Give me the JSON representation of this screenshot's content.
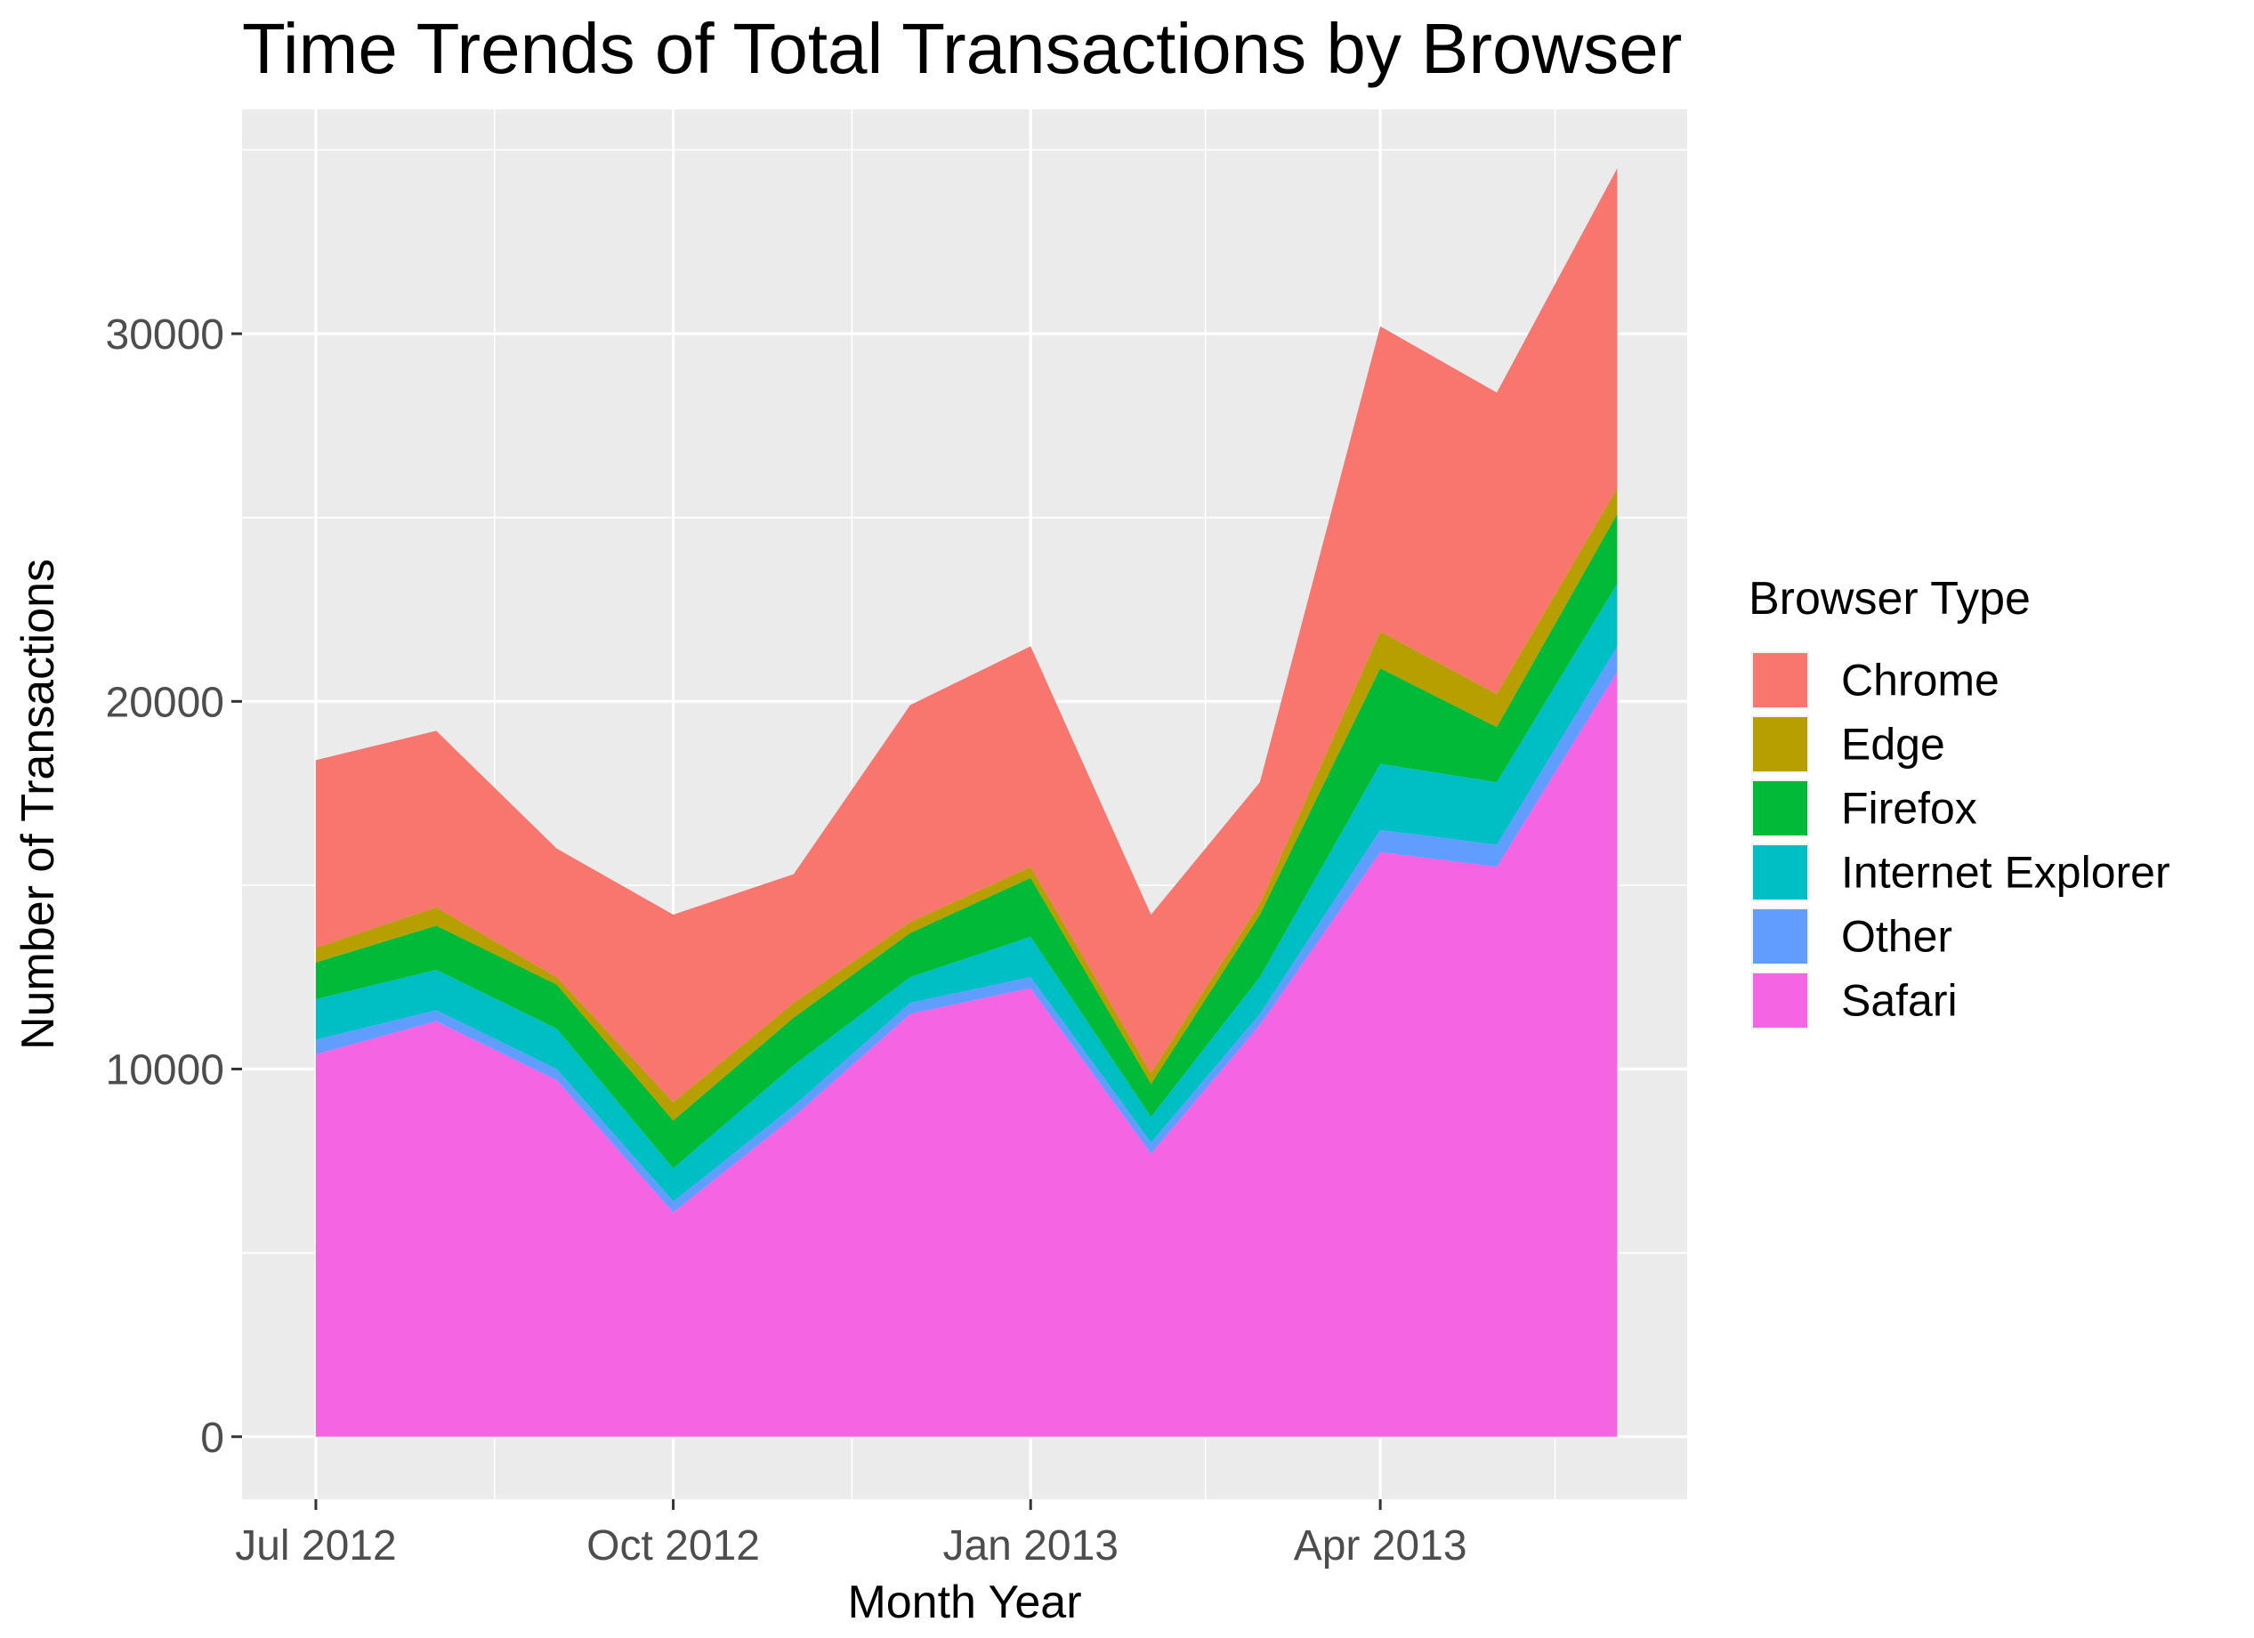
{
  "chart_data": {
    "type": "area",
    "stacked": true,
    "title": "Time Trends of Total Transactions by Browser",
    "xlabel": "Month Year",
    "ylabel": "Number of Transactions",
    "x": [
      "2012-07",
      "2012-08",
      "2012-09",
      "2012-10",
      "2012-11",
      "2012-12",
      "2013-01",
      "2013-02",
      "2013-03",
      "2013-04",
      "2013-05",
      "2013-06"
    ],
    "x_ticks": [
      {
        "x": "2012-07",
        "label": "Jul 2012"
      },
      {
        "x": "2012-10",
        "label": "Oct 2012"
      },
      {
        "x": "2013-01",
        "label": "Jan 2013"
      },
      {
        "x": "2013-04",
        "label": "Apr 2013"
      }
    ],
    "xlim": [
      "2012-06-12",
      "2013-06-19"
    ],
    "ylim": [
      -1700,
      36100
    ],
    "y_ticks": [
      0,
      10000,
      20000,
      30000
    ],
    "grid": true,
    "legend": {
      "title": "Browser Type",
      "position": "right"
    },
    "series": [
      {
        "name": "Chrome",
        "color": "#F8766D",
        "values": [
          5100,
          4800,
          3500,
          5100,
          3500,
          5900,
          6000,
          4300,
          3300,
          8300,
          8200,
          8700
        ]
      },
      {
        "name": "Edge",
        "color": "#B79F00",
        "values": [
          400,
          500,
          200,
          500,
          400,
          300,
          300,
          300,
          300,
          1000,
          900,
          700
        ]
      },
      {
        "name": "Firefox",
        "color": "#00BA38",
        "values": [
          1000,
          1200,
          1200,
          1300,
          1300,
          1200,
          1600,
          900,
          1700,
          2600,
          1500,
          1900
        ]
      },
      {
        "name": "Internet Explorer",
        "color": "#00BFC4",
        "values": [
          1100,
          1100,
          1100,
          900,
          1100,
          700,
          1100,
          700,
          1000,
          1800,
          1700,
          1700
        ]
      },
      {
        "name": "Other",
        "color": "#619CFF",
        "values": [
          400,
          300,
          300,
          300,
          300,
          300,
          300,
          300,
          300,
          600,
          600,
          700
        ]
      },
      {
        "name": "Safari",
        "color": "#F564E3",
        "values": [
          10400,
          11300,
          9700,
          6100,
          8700,
          11500,
          12200,
          7700,
          11200,
          15900,
          15500,
          20800
        ]
      }
    ]
  }
}
